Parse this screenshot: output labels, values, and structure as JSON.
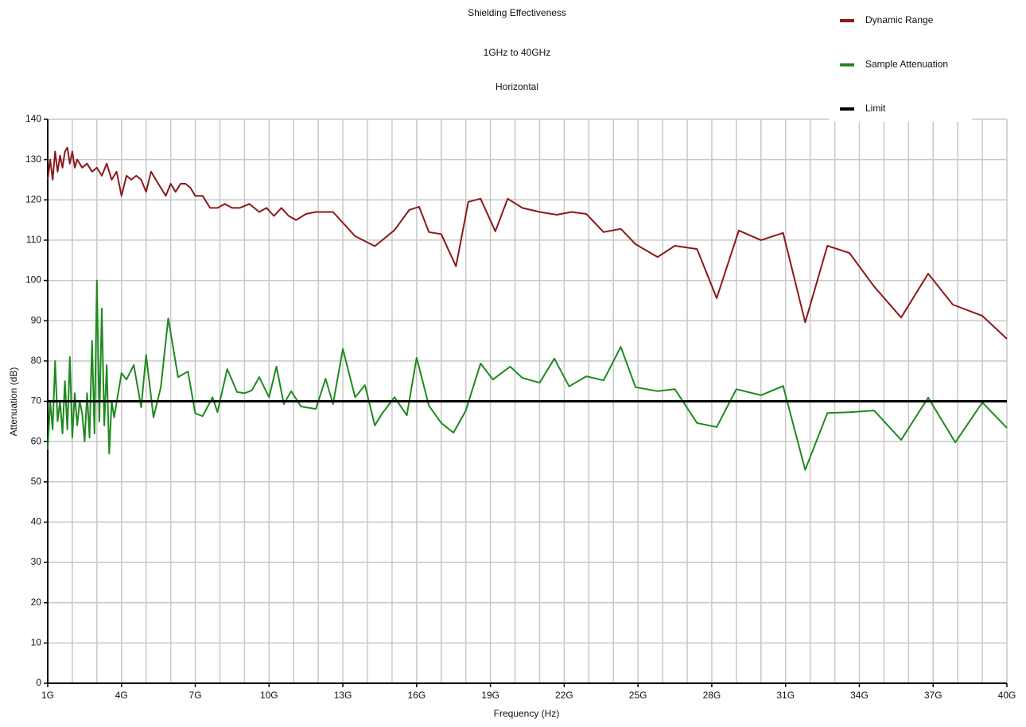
{
  "chart_data": {
    "type": "line",
    "title": "Shielding Effectiveness",
    "subtitle": "1GHz to 40GHz",
    "subtitle2": "Horizontal",
    "xlabel": "Frequency (Hz)",
    "ylabel": "Attenuation (dB)",
    "xlim": [
      1,
      40
    ],
    "ylim": [
      0,
      140
    ],
    "xticks": [
      {
        "value": 1,
        "label": "1G"
      },
      {
        "value": 4,
        "label": "4G"
      },
      {
        "value": 7,
        "label": "7G"
      },
      {
        "value": 10,
        "label": "10G"
      },
      {
        "value": 13,
        "label": "13G"
      },
      {
        "value": 16,
        "label": "16G"
      },
      {
        "value": 19,
        "label": "19G"
      },
      {
        "value": 22,
        "label": "22G"
      },
      {
        "value": 25,
        "label": "25G"
      },
      {
        "value": 28,
        "label": "28G"
      },
      {
        "value": 31,
        "label": "31G"
      },
      {
        "value": 34,
        "label": "34G"
      },
      {
        "value": 37,
        "label": "37G"
      },
      {
        "value": 40,
        "label": "40G"
      }
    ],
    "xminorticks": [
      1,
      2,
      3,
      4,
      5,
      6,
      7,
      8,
      9,
      10,
      11,
      12,
      13,
      14,
      15,
      16,
      17,
      18,
      19,
      20,
      21,
      22,
      23,
      24,
      25,
      26,
      27,
      28,
      29,
      30,
      31,
      32,
      33,
      34,
      35,
      36,
      37,
      38,
      39,
      40
    ],
    "yticks": [
      0,
      10,
      20,
      30,
      40,
      50,
      60,
      70,
      80,
      90,
      100,
      110,
      120,
      130,
      140
    ],
    "grid": true,
    "legend": "top-right",
    "series": [
      {
        "name": "Dynamic Range",
        "color": "#8b1a1a",
        "x": [
          1.0,
          1.1,
          1.2,
          1.3,
          1.4,
          1.5,
          1.6,
          1.7,
          1.8,
          1.9,
          2.0,
          2.1,
          2.2,
          2.4,
          2.6,
          2.8,
          3.0,
          3.2,
          3.4,
          3.6,
          3.8,
          4.0,
          4.2,
          4.4,
          4.6,
          4.8,
          5.0,
          5.2,
          5.4,
          5.6,
          5.8,
          6.0,
          6.2,
          6.4,
          6.6,
          6.8,
          7.0,
          7.3,
          7.6,
          7.9,
          8.2,
          8.5,
          8.8,
          9.2,
          9.6,
          9.9,
          10.2,
          10.5,
          10.8,
          11.1,
          11.5,
          11.9,
          12.3,
          12.6,
          13.5,
          14.3,
          15.1,
          15.7,
          16.1,
          16.5,
          17.0,
          17.6,
          18.1,
          18.6,
          19.2,
          19.7,
          20.3,
          21.0,
          21.7,
          22.3,
          22.9,
          23.6,
          24.3,
          24.9,
          25.8,
          26.5,
          27.4,
          28.2,
          29.1,
          30.0,
          30.9,
          31.8,
          32.7,
          33.6,
          34.6,
          35.7,
          36.8,
          37.8,
          39.0,
          40.0
        ],
        "values": [
          125,
          130,
          125,
          132,
          127,
          131,
          128,
          132,
          133,
          129,
          132,
          128,
          130,
          128,
          129,
          127,
          128,
          126,
          129,
          125,
          127,
          121,
          126,
          125,
          126,
          125,
          122,
          127,
          125,
          123,
          121,
          124,
          122,
          124,
          124,
          123,
          121,
          121,
          118,
          118,
          119,
          118,
          118,
          119,
          117,
          118,
          116,
          118,
          116,
          115,
          116.5,
          117,
          117,
          117,
          111,
          108.5,
          112.5,
          117.5,
          118.3,
          112,
          111.5,
          103.5,
          119.5,
          120.3,
          112.2,
          120.3,
          118,
          117,
          116.3,
          117,
          116.5,
          112,
          112.8,
          109,
          105.8,
          108.6,
          107.8,
          95.6,
          112.4,
          110,
          111.8,
          89.6,
          108.6,
          106.8,
          98.5,
          90.8,
          101.7,
          94,
          91.2,
          85.5
        ]
      },
      {
        "name": "Sample Attenuation",
        "color": "#1e8a1e",
        "x": [
          1.0,
          1.1,
          1.2,
          1.3,
          1.4,
          1.5,
          1.6,
          1.7,
          1.8,
          1.9,
          2.0,
          2.1,
          2.2,
          2.3,
          2.4,
          2.5,
          2.6,
          2.7,
          2.8,
          2.9,
          3.0,
          3.1,
          3.2,
          3.3,
          3.4,
          3.5,
          3.6,
          3.7,
          4.0,
          4.2,
          4.5,
          4.8,
          5.0,
          5.3,
          5.6,
          5.9,
          6.3,
          6.7,
          7.0,
          7.3,
          7.7,
          7.9,
          8.3,
          8.7,
          9.0,
          9.3,
          9.6,
          10.0,
          10.3,
          10.6,
          10.9,
          11.3,
          11.9,
          12.3,
          12.6,
          13.0,
          13.5,
          13.9,
          14.3,
          14.6,
          15.1,
          15.6,
          16.0,
          16.5,
          17.0,
          17.5,
          18.0,
          18.6,
          19.1,
          19.8,
          20.3,
          21.0,
          21.6,
          22.2,
          22.9,
          23.6,
          24.3,
          24.9,
          25.8,
          26.5,
          27.4,
          28.2,
          29.0,
          30.0,
          30.9,
          31.8,
          32.7,
          33.6,
          34.6,
          35.7,
          36.8,
          37.9,
          39.0,
          40.0
        ],
        "values": [
          58,
          70,
          63,
          80,
          65,
          70,
          62,
          75,
          63,
          81,
          61,
          72,
          64,
          70,
          67,
          60,
          72,
          61,
          85,
          62,
          100,
          65,
          93,
          64,
          79,
          57,
          70,
          66,
          77,
          75.4,
          79,
          68.5,
          81.5,
          66,
          73.5,
          90.6,
          76,
          77.4,
          67,
          66.3,
          71,
          67.3,
          78,
          72.3,
          72,
          72.7,
          76,
          71,
          78.6,
          69.3,
          72.5,
          68.7,
          68.1,
          75.6,
          69.3,
          83,
          71,
          74,
          64,
          67,
          71,
          66.5,
          80.8,
          68.9,
          64.6,
          62.2,
          67.7,
          79.4,
          75.4,
          78.6,
          75.8,
          74.6,
          80.6,
          73.7,
          76.2,
          75.2,
          83.5,
          73.5,
          72.5,
          73,
          64.6,
          63.6,
          73,
          71.5,
          73.8,
          53,
          67.1,
          67.3,
          67.7,
          60.4,
          70.9,
          59.8,
          69.7,
          63.4
        ]
      },
      {
        "name": "Limit",
        "color": "#000000",
        "x": [
          1,
          40
        ],
        "values": [
          70,
          70
        ]
      }
    ]
  }
}
